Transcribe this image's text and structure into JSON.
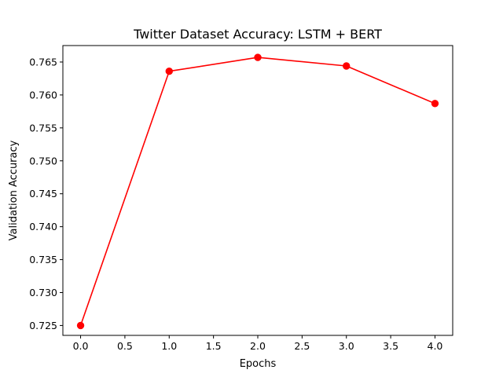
{
  "chart_data": {
    "type": "line",
    "title": "Twitter Dataset Accuracy: LSTM + BERT",
    "xlabel": "Epochs",
    "ylabel": "Validation Accuracy",
    "xlim": [
      -0.2,
      4.2
    ],
    "ylim": [
      0.7235,
      0.7675
    ],
    "x_ticks": [
      {
        "value": 0.0,
        "label": "0.0"
      },
      {
        "value": 0.5,
        "label": "0.5"
      },
      {
        "value": 1.0,
        "label": "1.0"
      },
      {
        "value": 1.5,
        "label": "1.5"
      },
      {
        "value": 2.0,
        "label": "2.0"
      },
      {
        "value": 2.5,
        "label": "2.5"
      },
      {
        "value": 3.0,
        "label": "3.0"
      },
      {
        "value": 3.5,
        "label": "3.5"
      },
      {
        "value": 4.0,
        "label": "4.0"
      }
    ],
    "y_ticks": [
      {
        "value": 0.725,
        "label": "0.725"
      },
      {
        "value": 0.73,
        "label": "0.730"
      },
      {
        "value": 0.735,
        "label": "0.735"
      },
      {
        "value": 0.74,
        "label": "0.740"
      },
      {
        "value": 0.745,
        "label": "0.745"
      },
      {
        "value": 0.75,
        "label": "0.750"
      },
      {
        "value": 0.755,
        "label": "0.755"
      },
      {
        "value": 0.76,
        "label": "0.760"
      },
      {
        "value": 0.765,
        "label": "0.765"
      }
    ],
    "grid": false,
    "series": [
      {
        "color": "#ff0000",
        "marker": "circle",
        "x": [
          0,
          1,
          2,
          3,
          4
        ],
        "y": [
          0.725,
          0.7636,
          0.7657,
          0.7644,
          0.7587
        ]
      }
    ]
  }
}
